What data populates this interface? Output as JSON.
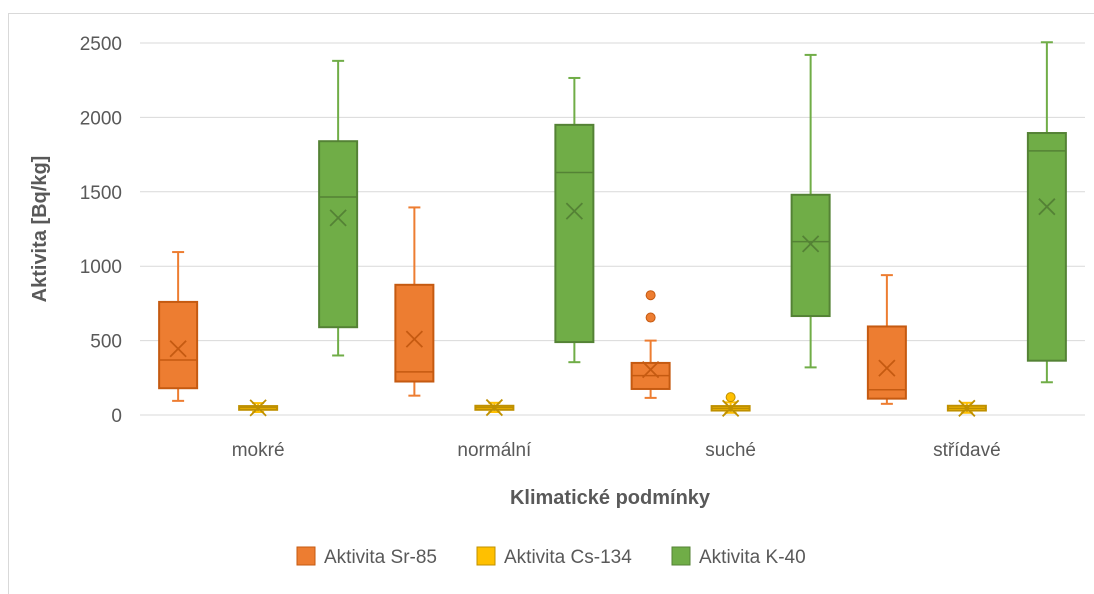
{
  "chart_data": {
    "type": "box",
    "xlabel": "Klimatické podmínky",
    "ylabel": "Aktivita [Bq/kg]",
    "ylim": [
      0,
      2500
    ],
    "yticks": [
      0,
      500,
      1000,
      1500,
      2000,
      2500
    ],
    "grid": true,
    "legend_position": "bottom",
    "categories": [
      "mokré",
      "normální",
      "suché",
      "střídavé"
    ],
    "series": [
      {
        "name": "Aktivita Sr-85",
        "color": "#ED7D31",
        "boxes": [
          {
            "min": 95,
            "q1": 180,
            "median": 370,
            "q3": 760,
            "max": 1095,
            "mean": 445,
            "outliers": []
          },
          {
            "min": 130,
            "q1": 225,
            "median": 290,
            "q3": 875,
            "max": 1395,
            "mean": 510,
            "outliers": []
          },
          {
            "min": 115,
            "q1": 175,
            "median": 265,
            "q3": 350,
            "max": 500,
            "mean": 305,
            "outliers": [
              655,
              805
            ]
          },
          {
            "min": 75,
            "q1": 110,
            "median": 170,
            "q3": 595,
            "max": 940,
            "mean": 315,
            "outliers": []
          }
        ]
      },
      {
        "name": "Aktivita Cs-134",
        "color": "#FFC000",
        "boxes": [
          {
            "min": 20,
            "q1": 35,
            "median": 50,
            "q3": 60,
            "max": 80,
            "mean": 48,
            "outliers": []
          },
          {
            "min": 20,
            "q1": 35,
            "median": 50,
            "q3": 62,
            "max": 82,
            "mean": 50,
            "outliers": []
          },
          {
            "min": 15,
            "q1": 30,
            "median": 45,
            "q3": 60,
            "max": 85,
            "mean": 45,
            "outliers": [
              120
            ]
          },
          {
            "min": 15,
            "q1": 30,
            "median": 45,
            "q3": 62,
            "max": 82,
            "mean": 45,
            "outliers": []
          }
        ]
      },
      {
        "name": "Aktivita K-40",
        "color": "#70AD47",
        "boxes": [
          {
            "min": 400,
            "q1": 590,
            "median": 1465,
            "q3": 1840,
            "max": 2380,
            "mean": 1325,
            "outliers": []
          },
          {
            "min": 355,
            "q1": 490,
            "median": 1630,
            "q3": 1950,
            "max": 2265,
            "mean": 1370,
            "outliers": []
          },
          {
            "min": 320,
            "q1": 665,
            "median": 1165,
            "q3": 1480,
            "max": 2420,
            "mean": 1150,
            "outliers": []
          },
          {
            "min": 220,
            "q1": 365,
            "median": 1775,
            "q3": 1895,
            "max": 2505,
            "mean": 1400,
            "outliers": []
          }
        ]
      }
    ]
  }
}
